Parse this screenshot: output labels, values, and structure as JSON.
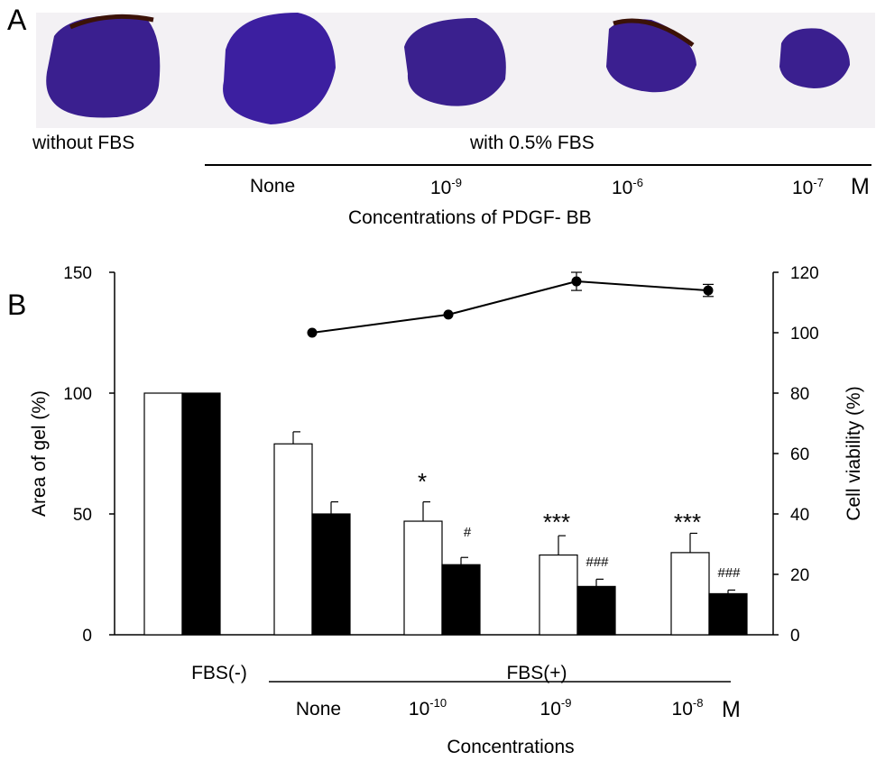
{
  "panel_a": {
    "label": "A",
    "group_without": "without FBS",
    "group_with": "with 0.5% FBS",
    "conc_none": "None",
    "conc_1": {
      "base": "10",
      "exp": "-9"
    },
    "conc_2": {
      "base": "10",
      "exp": "-6"
    },
    "conc_3": {
      "base": "10",
      "exp": "-7"
    },
    "unit": "M",
    "xlabel": "Concentrations of PDGF- BB",
    "gel_color": "#3a1f8f"
  },
  "chart_data": {
    "type": "bar",
    "panel_label": "B",
    "categories": [
      "FBS(-)",
      "None",
      "10-10",
      "10-9",
      "10-8"
    ],
    "group_label": "FBS(+)",
    "unit": "M",
    "xlabel": "Concentrations",
    "ylabel": "Area of gel (%)",
    "ylabel_right": "Cell viability (%)",
    "ylim": [
      0,
      150
    ],
    "ylim_right": [
      0,
      120
    ],
    "yticks": [
      "0",
      "50",
      "100",
      "150"
    ],
    "yticks_right": [
      "0",
      "20",
      "40",
      "60",
      "80",
      "100",
      "120"
    ],
    "series": [
      {
        "color": "#ffffff",
        "values": [
          100,
          79,
          47,
          33,
          34
        ],
        "errors": [
          0,
          5,
          8,
          8,
          8
        ]
      },
      {
        "color": "#000000",
        "values": [
          100,
          50,
          29,
          20,
          17
        ],
        "errors": [
          0,
          5,
          3,
          3,
          1.5
        ]
      }
    ],
    "viability": {
      "categories": [
        "None",
        "10-10",
        "10-9",
        "10-8"
      ],
      "values": [
        100,
        106,
        117,
        114
      ],
      "errors": [
        0,
        0,
        3,
        2
      ]
    },
    "tick_labels": {
      "fbs_minus": "FBS(-)",
      "none": "None",
      "c1": {
        "base": "10",
        "exp": "-10"
      },
      "c2": {
        "base": "10",
        "exp": "-9"
      },
      "c3": {
        "base": "10",
        "exp": "-8"
      }
    },
    "annotations": {
      "a1": "*",
      "a2": "#",
      "a3": "***",
      "a4": "###",
      "a5": "***",
      "a6": "###"
    }
  }
}
